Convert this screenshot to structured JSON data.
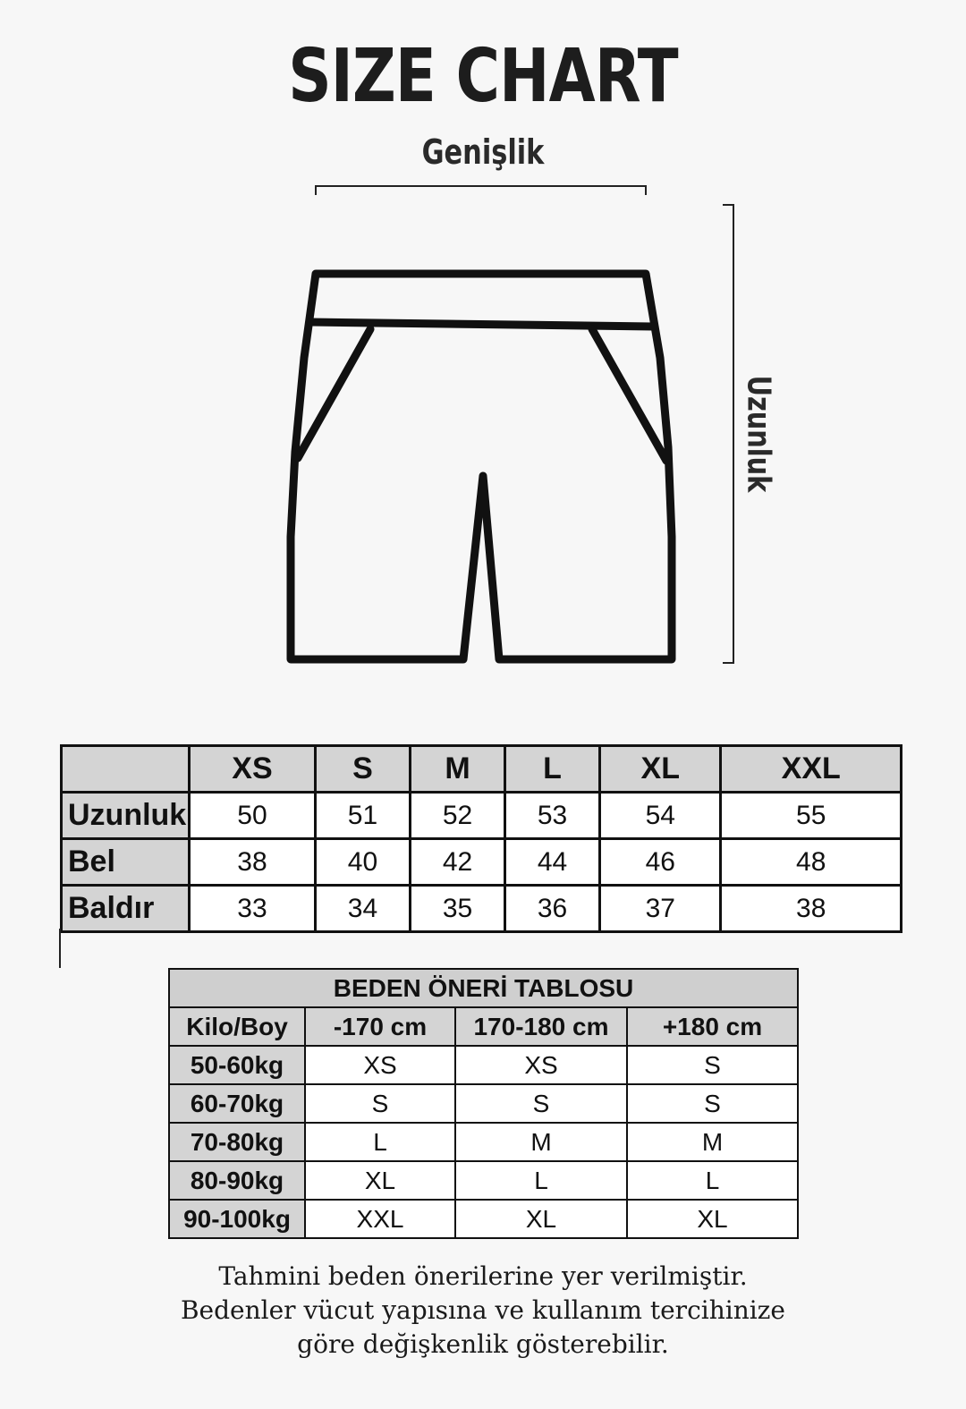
{
  "title": "SIZE CHART",
  "diagram": {
    "width_label": "Genişlik",
    "length_label": "Uzunluk",
    "icon": "shorts-outline-icon"
  },
  "size_table": {
    "columns": [
      "",
      "XS",
      "S",
      "M",
      "L",
      "XL",
      "XXL"
    ],
    "rows": [
      {
        "label": "Uzunluk",
        "values": [
          "50",
          "51",
          "52",
          "53",
          "54",
          "55"
        ]
      },
      {
        "label": "Bel",
        "values": [
          "38",
          "40",
          "42",
          "44",
          "46",
          "48"
        ]
      },
      {
        "label": "Baldır",
        "values": [
          "33",
          "34",
          "35",
          "36",
          "37",
          "38"
        ]
      }
    ]
  },
  "recommendation_table": {
    "title": "BEDEN ÖNERİ TABLOSU",
    "columns": [
      "Kilo/Boy",
      "-170 cm",
      "170-180 cm",
      "+180 cm"
    ],
    "rows": [
      {
        "label": "50-60kg",
        "values": [
          "XS",
          "XS",
          "S"
        ]
      },
      {
        "label": "60-70kg",
        "values": [
          "S",
          "S",
          "S"
        ]
      },
      {
        "label": "70-80kg",
        "values": [
          "L",
          "M",
          "M"
        ]
      },
      {
        "label": "80-90kg",
        "values": [
          "XL",
          "L",
          "L"
        ]
      },
      {
        "label": "90-100kg",
        "values": [
          "XXL",
          "XL",
          "XL"
        ]
      }
    ]
  },
  "note": [
    "Tahmini beden önerilerine yer verilmiştir.",
    "Bedenler vücut yapısına ve kullanım tercihinize",
    "göre değişkenlik gösterebilir."
  ]
}
